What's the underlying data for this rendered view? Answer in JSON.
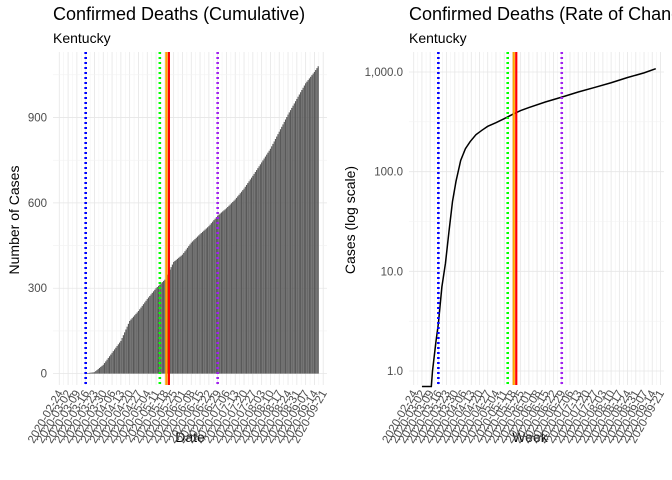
{
  "colors": {
    "bar": "#595959",
    "line": "#000000",
    "grid_major": "#e6e6e6",
    "grid_minor": "#f2f2f2",
    "vline_blue": "#0000ff",
    "vline_green": "#00ff00",
    "vline_red": "#ff0000",
    "vline_orange": "#ffa500",
    "vline_purple": "#a020f0"
  },
  "chart_data": [
    {
      "type": "bar",
      "title": "Confirmed Deaths (Cumulative)",
      "subtitle": "Kentucky",
      "xlabel": "Date",
      "ylabel": "Number of Cases",
      "yticks": [
        0,
        300,
        600,
        900
      ],
      "ylim": [
        -40,
        1130
      ],
      "x_tick_labels": [
        "2020-02-24",
        "2020-03-02",
        "2020-03-09",
        "2020-03-16",
        "2020-03-23",
        "2020-03-30",
        "2020-04-06",
        "2020-04-13",
        "2020-04-20",
        "2020-04-27",
        "2020-05-04",
        "2020-05-11",
        "2020-05-18",
        "2020-05-25",
        "2020-06-01",
        "2020-06-08",
        "2020-06-15",
        "2020-06-22",
        "2020-06-29",
        "2020-07-06",
        "2020-07-13",
        "2020-07-20",
        "2020-07-27",
        "2020-08-03",
        "2020-08-10",
        "2020-08-17",
        "2020-08-24",
        "2020-08-31",
        "2020-09-07",
        "2020-09-14",
        "2020-09-21"
      ],
      "series": [
        {
          "values": {
            "start_date": "2020-02-24",
            "first_death_date": "2020-03-16",
            "points": [
              [
                "2020-03-16",
                1
              ],
              [
                "2020-03-23",
                5
              ],
              [
                "2020-03-30",
                31
              ],
              [
                "2020-04-06",
                73
              ],
              [
                "2020-04-13",
                115
              ],
              [
                "2020-04-20",
                185
              ],
              [
                "2020-04-27",
                220
              ],
              [
                "2020-05-04",
                262
              ],
              [
                "2020-05-11",
                300
              ],
              [
                "2020-05-18",
                330
              ],
              [
                "2020-05-25",
                392
              ],
              [
                "2020-06-01",
                418
              ],
              [
                "2020-06-08",
                460
              ],
              [
                "2020-06-15",
                490
              ],
              [
                "2020-06-22",
                518
              ],
              [
                "2020-06-29",
                555
              ],
              [
                "2020-07-06",
                581
              ],
              [
                "2020-07-13",
                612
              ],
              [
                "2020-07-20",
                650
              ],
              [
                "2020-07-27",
                695
              ],
              [
                "2020-08-03",
                742
              ],
              [
                "2020-08-10",
                790
              ],
              [
                "2020-08-17",
                850
              ],
              [
                "2020-08-24",
                910
              ],
              [
                "2020-08-31",
                965
              ],
              [
                "2020-09-07",
                1020
              ],
              [
                "2020-09-14",
                1060
              ],
              [
                "2020-09-17",
                1080
              ]
            ]
          }
        }
      ],
      "reference_lines": [
        {
          "date": "2020-03-16",
          "color": "blue",
          "style": "dotted"
        },
        {
          "date": "2020-05-14",
          "color": "green",
          "style": "dotted"
        },
        {
          "date": "2020-05-20",
          "color": "orange",
          "style": "solid"
        },
        {
          "date": "2020-05-20",
          "color": "red",
          "style": "solid"
        },
        {
          "date": "2020-06-29",
          "color": "purple",
          "style": "dotted"
        }
      ]
    },
    {
      "type": "line",
      "title": "Confirmed Deaths (Rate of Change)",
      "subtitle": "Kentucky",
      "xlabel": "Week",
      "ylabel": "Cases (log scale)",
      "log_scale": true,
      "yticks": [
        1,
        10,
        100,
        1000
      ],
      "ytick_labels": [
        "1.0",
        "10.0",
        "100.0",
        "1,000.0"
      ],
      "x_tick_labels": [
        "2020-02-24",
        "2020-03-02",
        "2020-03-09",
        "2020-03-16",
        "2020-03-23",
        "2020-03-30",
        "2020-04-06",
        "2020-04-13",
        "2020-04-20",
        "2020-04-27",
        "2020-05-04",
        "2020-05-11",
        "2020-05-18",
        "2020-05-25",
        "2020-06-01",
        "2020-06-08",
        "2020-06-15",
        "2020-06-22",
        "2020-06-29",
        "2020-07-06",
        "2020-07-13",
        "2020-07-20",
        "2020-07-27",
        "2020-08-03",
        "2020-08-10",
        "2020-08-17",
        "2020-08-24",
        "2020-08-31",
        "2020-09-07",
        "2020-09-14",
        "2020-09-21"
      ],
      "series": [
        {
          "points": [
            [
              "2020-03-02",
              0.7
            ],
            [
              "2020-03-10",
              0.7
            ],
            [
              "2020-03-11",
              1.0
            ],
            [
              "2020-03-14",
              2.0
            ],
            [
              "2020-03-16",
              3.0
            ],
            [
              "2020-03-19",
              7.0
            ],
            [
              "2020-03-22",
              12
            ],
            [
              "2020-03-25",
              25
            ],
            [
              "2020-03-28",
              50
            ],
            [
              "2020-03-31",
              80
            ],
            [
              "2020-04-04",
              130
            ],
            [
              "2020-04-08",
              170
            ],
            [
              "2020-04-12",
              200
            ],
            [
              "2020-04-17",
              235
            ],
            [
              "2020-04-22",
              260
            ],
            [
              "2020-04-27",
              285
            ],
            [
              "2020-05-04",
              310
            ],
            [
              "2020-05-11",
              340
            ],
            [
              "2020-05-18",
              375
            ],
            [
              "2020-05-25",
              410
            ],
            [
              "2020-06-01",
              440
            ],
            [
              "2020-06-15",
              500
            ],
            [
              "2020-06-29",
              560
            ],
            [
              "2020-07-13",
              630
            ],
            [
              "2020-07-27",
              700
            ],
            [
              "2020-08-10",
              780
            ],
            [
              "2020-08-24",
              880
            ],
            [
              "2020-09-07",
              980
            ],
            [
              "2020-09-17",
              1080
            ]
          ]
        }
      ],
      "reference_lines": [
        {
          "date": "2020-03-16",
          "color": "blue",
          "style": "dotted"
        },
        {
          "date": "2020-05-14",
          "color": "green",
          "style": "dotted"
        },
        {
          "date": "2020-05-20",
          "color": "orange",
          "style": "solid"
        },
        {
          "date": "2020-05-20",
          "color": "red",
          "style": "solid"
        },
        {
          "date": "2020-06-29",
          "color": "purple",
          "style": "dotted"
        }
      ]
    }
  ]
}
